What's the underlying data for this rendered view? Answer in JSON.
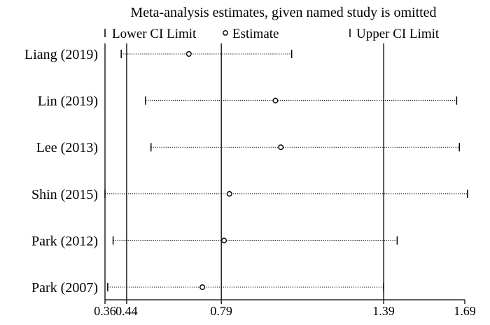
{
  "chart_data": {
    "type": "scatter",
    "title": "Meta-analysis estimates, given named study is omitted",
    "legend": {
      "placement": "top",
      "lower": "Lower CI Limit",
      "estimate": "Estimate",
      "upper": "Upper CI Limit"
    },
    "studies": [
      "Liang (2019)",
      "Lin (2019)",
      "Lee (2013)",
      "Shin (2015)",
      "Park (2012)",
      "Park (2007)"
    ],
    "lower": [
      0.42,
      0.51,
      0.53,
      0.36,
      0.39,
      0.37
    ],
    "estimate": [
      0.67,
      0.99,
      1.01,
      0.82,
      0.8,
      0.72
    ],
    "upper": [
      1.05,
      1.66,
      1.67,
      1.7,
      1.44,
      1.39
    ],
    "reference_lines": [
      0.44,
      0.79,
      1.39
    ],
    "x_ticks": [
      "0.36",
      "0.44",
      "0.79",
      "1.39",
      "1.69"
    ],
    "xlim": [
      0.36,
      1.69
    ],
    "grid": false
  }
}
